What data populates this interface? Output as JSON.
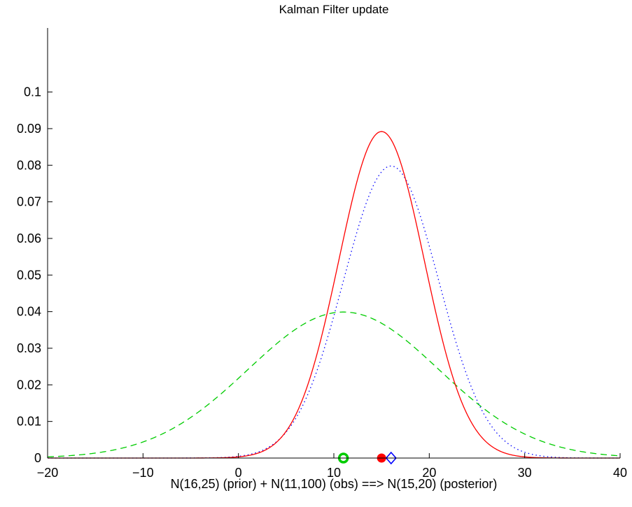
{
  "chart_data": {
    "type": "line",
    "title": "Kalman Filter update",
    "xlabel": "N(16,25) (prior) + N(11,100) (obs) ==> N(15,20) (posterior)",
    "ylabel": "",
    "xlim": [
      -20,
      40
    ],
    "ylim": [
      0,
      0.1175
    ],
    "x_ticks": [
      -20,
      -10,
      0,
      10,
      20,
      30,
      40
    ],
    "x_tick_labels": [
      "−20",
      "−10",
      "0",
      "10",
      "20",
      "30",
      "40"
    ],
    "y_ticks": [
      0,
      0.01,
      0.02,
      0.03,
      0.04,
      0.05,
      0.06,
      0.07,
      0.08,
      0.09,
      0.1
    ],
    "y_tick_labels": [
      "0",
      "0.01",
      "0.02",
      "0.03",
      "0.04",
      "0.05",
      "0.06",
      "0.07",
      "0.08",
      "0.09",
      "0.1"
    ],
    "grid": false,
    "series": [
      {
        "mean": 16,
        "variance": 25,
        "color": "#0000ff",
        "style": "dotted",
        "marker": "diamond",
        "marker_x": 16
      },
      {
        "mean": 11,
        "variance": 100,
        "color": "#00cc00",
        "style": "dashed",
        "marker": "circle",
        "marker_x": 11
      },
      {
        "mean": 15,
        "variance": 20,
        "color": "#ff0000",
        "style": "solid",
        "marker": "filled-circle",
        "marker_x": 15
      }
    ]
  }
}
